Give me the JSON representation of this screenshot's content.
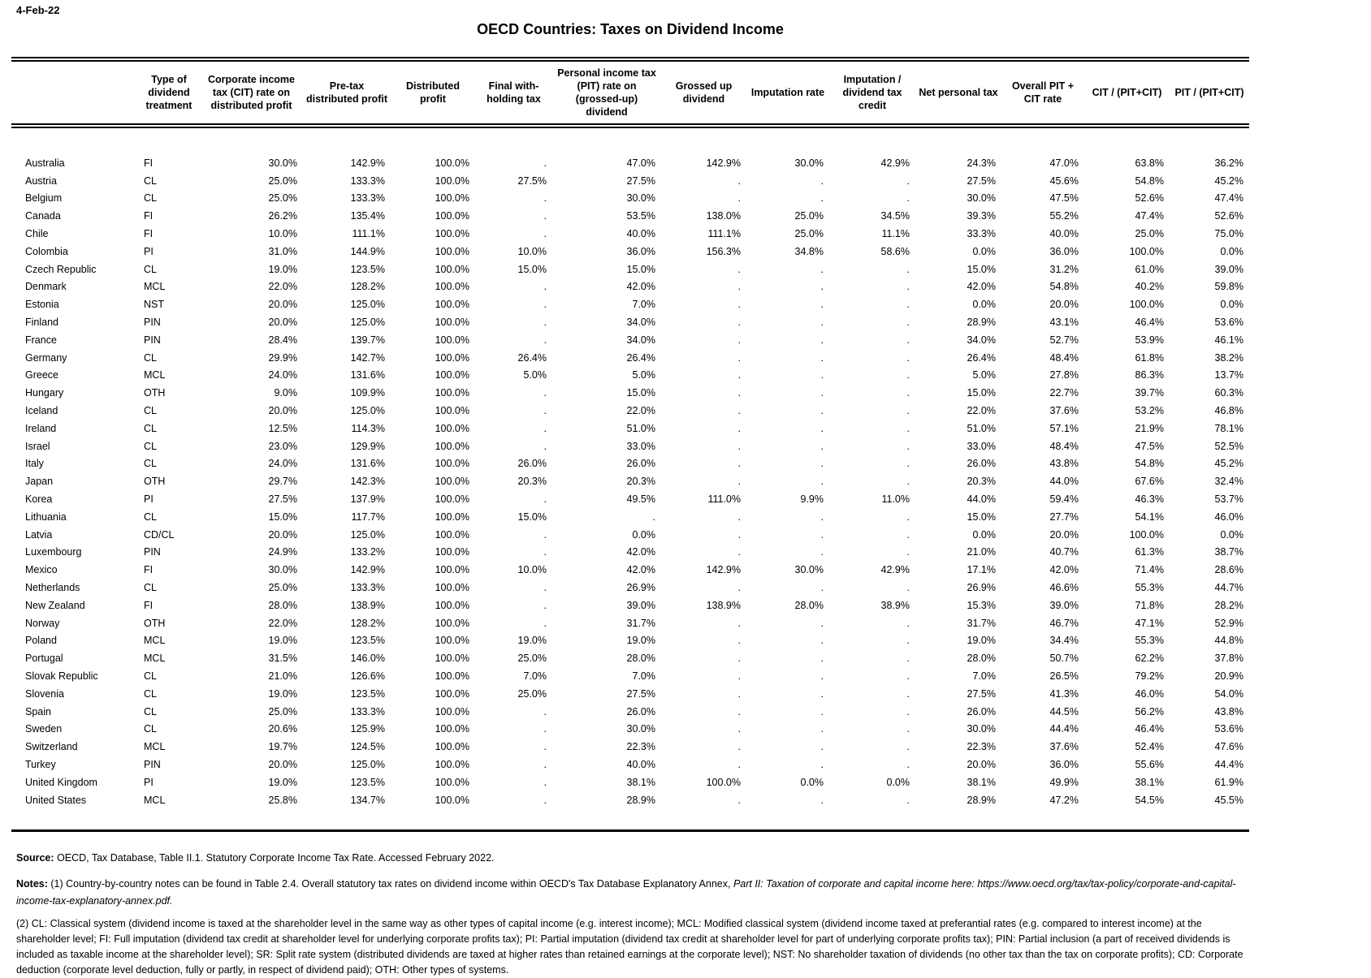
{
  "date_label": "4-Feb-22",
  "title": "OECD Countries: Taxes on Dividend Income",
  "table": {
    "columns": [
      "",
      "Type of dividend treatment",
      "Corporate income tax (CIT) rate on distributed profit",
      "Pre-tax distributed profit",
      "Distributed profit",
      "Final with-holding tax",
      "Personal income tax (PIT) rate on (grossed-up) dividend",
      "Grossed up dividend",
      "Imputation rate",
      "Imputation / dividend tax credit",
      "Net personal tax",
      "Overall PIT + CIT rate",
      "CIT / (PIT+CIT)",
      "PIT / (PIT+CIT)"
    ],
    "rows": [
      [
        "Australia",
        "FI",
        "30.0%",
        "142.9%",
        "100.0%",
        ".",
        "47.0%",
        "142.9%",
        "30.0%",
        "42.9%",
        "24.3%",
        "47.0%",
        "63.8%",
        "36.2%"
      ],
      [
        "Austria",
        "CL",
        "25.0%",
        "133.3%",
        "100.0%",
        "27.5%",
        "27.5%",
        ".",
        ".",
        ".",
        "27.5%",
        "45.6%",
        "54.8%",
        "45.2%"
      ],
      [
        "Belgium",
        "CL",
        "25.0%",
        "133.3%",
        "100.0%",
        ".",
        "30.0%",
        ".",
        ".",
        ".",
        "30.0%",
        "47.5%",
        "52.6%",
        "47.4%"
      ],
      [
        "Canada",
        "FI",
        "26.2%",
        "135.4%",
        "100.0%",
        ".",
        "53.5%",
        "138.0%",
        "25.0%",
        "34.5%",
        "39.3%",
        "55.2%",
        "47.4%",
        "52.6%"
      ],
      [
        "Chile",
        "FI",
        "10.0%",
        "111.1%",
        "100.0%",
        ".",
        "40.0%",
        "111.1%",
        "25.0%",
        "11.1%",
        "33.3%",
        "40.0%",
        "25.0%",
        "75.0%"
      ],
      [
        "Colombia",
        "PI",
        "31.0%",
        "144.9%",
        "100.0%",
        "10.0%",
        "36.0%",
        "156.3%",
        "34.8%",
        "58.6%",
        "0.0%",
        "36.0%",
        "100.0%",
        "0.0%"
      ],
      [
        "Czech Republic",
        "CL",
        "19.0%",
        "123.5%",
        "100.0%",
        "15.0%",
        "15.0%",
        ".",
        ".",
        ".",
        "15.0%",
        "31.2%",
        "61.0%",
        "39.0%"
      ],
      [
        "Denmark",
        "MCL",
        "22.0%",
        "128.2%",
        "100.0%",
        ".",
        "42.0%",
        ".",
        ".",
        ".",
        "42.0%",
        "54.8%",
        "40.2%",
        "59.8%"
      ],
      [
        "Estonia",
        "NST",
        "20.0%",
        "125.0%",
        "100.0%",
        ".",
        "7.0%",
        ".",
        ".",
        ".",
        "0.0%",
        "20.0%",
        "100.0%",
        "0.0%"
      ],
      [
        "Finland",
        "PIN",
        "20.0%",
        "125.0%",
        "100.0%",
        ".",
        "34.0%",
        ".",
        ".",
        ".",
        "28.9%",
        "43.1%",
        "46.4%",
        "53.6%"
      ],
      [
        "France",
        "PIN",
        "28.4%",
        "139.7%",
        "100.0%",
        ".",
        "34.0%",
        ".",
        ".",
        ".",
        "34.0%",
        "52.7%",
        "53.9%",
        "46.1%"
      ],
      [
        "Germany",
        "CL",
        "29.9%",
        "142.7%",
        "100.0%",
        "26.4%",
        "26.4%",
        ".",
        ".",
        ".",
        "26.4%",
        "48.4%",
        "61.8%",
        "38.2%"
      ],
      [
        "Greece",
        "MCL",
        "24.0%",
        "131.6%",
        "100.0%",
        "5.0%",
        "5.0%",
        ".",
        ".",
        ".",
        "5.0%",
        "27.8%",
        "86.3%",
        "13.7%"
      ],
      [
        "Hungary",
        "OTH",
        "9.0%",
        "109.9%",
        "100.0%",
        ".",
        "15.0%",
        ".",
        ".",
        ".",
        "15.0%",
        "22.7%",
        "39.7%",
        "60.3%"
      ],
      [
        "Iceland",
        "CL",
        "20.0%",
        "125.0%",
        "100.0%",
        ".",
        "22.0%",
        ".",
        ".",
        ".",
        "22.0%",
        "37.6%",
        "53.2%",
        "46.8%"
      ],
      [
        "Ireland",
        "CL",
        "12.5%",
        "114.3%",
        "100.0%",
        ".",
        "51.0%",
        ".",
        ".",
        ".",
        "51.0%",
        "57.1%",
        "21.9%",
        "78.1%"
      ],
      [
        "Israel",
        "CL",
        "23.0%",
        "129.9%",
        "100.0%",
        ".",
        "33.0%",
        ".",
        ".",
        ".",
        "33.0%",
        "48.4%",
        "47.5%",
        "52.5%"
      ],
      [
        "Italy",
        "CL",
        "24.0%",
        "131.6%",
        "100.0%",
        "26.0%",
        "26.0%",
        ".",
        ".",
        ".",
        "26.0%",
        "43.8%",
        "54.8%",
        "45.2%"
      ],
      [
        "Japan",
        "OTH",
        "29.7%",
        "142.3%",
        "100.0%",
        "20.3%",
        "20.3%",
        ".",
        ".",
        ".",
        "20.3%",
        "44.0%",
        "67.6%",
        "32.4%"
      ],
      [
        "Korea",
        "PI",
        "27.5%",
        "137.9%",
        "100.0%",
        ".",
        "49.5%",
        "111.0%",
        "9.9%",
        "11.0%",
        "44.0%",
        "59.4%",
        "46.3%",
        "53.7%"
      ],
      [
        "Lithuania",
        "CL",
        "15.0%",
        "117.7%",
        "100.0%",
        "15.0%",
        ".",
        ".",
        ".",
        ".",
        "15.0%",
        "27.7%",
        "54.1%",
        "46.0%"
      ],
      [
        "Latvia",
        "CD/CL",
        "20.0%",
        "125.0%",
        "100.0%",
        ".",
        "0.0%",
        ".",
        ".",
        ".",
        "0.0%",
        "20.0%",
        "100.0%",
        "0.0%"
      ],
      [
        "Luxembourg",
        "PIN",
        "24.9%",
        "133.2%",
        "100.0%",
        ".",
        "42.0%",
        ".",
        ".",
        ".",
        "21.0%",
        "40.7%",
        "61.3%",
        "38.7%"
      ],
      [
        "Mexico",
        "FI",
        "30.0%",
        "142.9%",
        "100.0%",
        "10.0%",
        "42.0%",
        "142.9%",
        "30.0%",
        "42.9%",
        "17.1%",
        "42.0%",
        "71.4%",
        "28.6%"
      ],
      [
        "Netherlands",
        "CL",
        "25.0%",
        "133.3%",
        "100.0%",
        ".",
        "26.9%",
        ".",
        ".",
        ".",
        "26.9%",
        "46.6%",
        "55.3%",
        "44.7%"
      ],
      [
        "New Zealand",
        "FI",
        "28.0%",
        "138.9%",
        "100.0%",
        ".",
        "39.0%",
        "138.9%",
        "28.0%",
        "38.9%",
        "15.3%",
        "39.0%",
        "71.8%",
        "28.2%"
      ],
      [
        "Norway",
        "OTH",
        "22.0%",
        "128.2%",
        "100.0%",
        ".",
        "31.7%",
        ".",
        ".",
        ".",
        "31.7%",
        "46.7%",
        "47.1%",
        "52.9%"
      ],
      [
        "Poland",
        "MCL",
        "19.0%",
        "123.5%",
        "100.0%",
        "19.0%",
        "19.0%",
        ".",
        ".",
        ".",
        "19.0%",
        "34.4%",
        "55.3%",
        "44.8%"
      ],
      [
        "Portugal",
        "MCL",
        "31.5%",
        "146.0%",
        "100.0%",
        "25.0%",
        "28.0%",
        ".",
        ".",
        ".",
        "28.0%",
        "50.7%",
        "62.2%",
        "37.8%"
      ],
      [
        "Slovak Republic",
        "CL",
        "21.0%",
        "126.6%",
        "100.0%",
        "7.0%",
        "7.0%",
        ".",
        ".",
        ".",
        "7.0%",
        "26.5%",
        "79.2%",
        "20.9%"
      ],
      [
        "Slovenia",
        "CL",
        "19.0%",
        "123.5%",
        "100.0%",
        "25.0%",
        "27.5%",
        ".",
        ".",
        ".",
        "27.5%",
        "41.3%",
        "46.0%",
        "54.0%"
      ],
      [
        "Spain",
        "CL",
        "25.0%",
        "133.3%",
        "100.0%",
        ".",
        "26.0%",
        ".",
        ".",
        ".",
        "26.0%",
        "44.5%",
        "56.2%",
        "43.8%"
      ],
      [
        "Sweden",
        "CL",
        "20.6%",
        "125.9%",
        "100.0%",
        ".",
        "30.0%",
        ".",
        ".",
        ".",
        "30.0%",
        "44.4%",
        "46.4%",
        "53.6%"
      ],
      [
        "Switzerland",
        "MCL",
        "19.7%",
        "124.5%",
        "100.0%",
        ".",
        "22.3%",
        ".",
        ".",
        ".",
        "22.3%",
        "37.6%",
        "52.4%",
        "47.6%"
      ],
      [
        "Turkey",
        "PIN",
        "20.0%",
        "125.0%",
        "100.0%",
        ".",
        "40.0%",
        ".",
        ".",
        ".",
        "20.0%",
        "36.0%",
        "55.6%",
        "44.4%"
      ],
      [
        "United Kingdom",
        "PI",
        "19.0%",
        "123.5%",
        "100.0%",
        ".",
        "38.1%",
        "100.0%",
        "0.0%",
        "0.0%",
        "38.1%",
        "49.9%",
        "38.1%",
        "61.9%"
      ],
      [
        "United States",
        "MCL",
        "25.8%",
        "134.7%",
        "100.0%",
        ".",
        "28.9%",
        ".",
        ".",
        ".",
        "28.9%",
        "47.2%",
        "54.5%",
        "45.5%"
      ]
    ]
  },
  "footer": {
    "source_label": "Source:",
    "source_text": " OECD, Tax Database, Table II.1. Statutory Corporate Income Tax Rate. Accessed February 2022.",
    "notes_label": "Notes:",
    "notes1_regular": " (1) Country-by-country notes can be found in Table 2.4. Overall statutory tax rates on dividend income within OECD's Tax Database Explanatory Annex, ",
    "notes1_italic": "Part II: Taxation of corporate and capital income here: https://www.oecd.org/tax/tax-policy/corporate-and-capital-income-tax-explanatory-annex.pdf.",
    "notes2": "(2) CL: Classical system (dividend income is taxed at the shareholder level in the same way as other types of capital income (e.g. interest income); MCL: Modified classical system (dividend income taxed at preferantial rates (e.g. compared to interest income) at the shareholder level; FI: Full imputation (dividend tax credit at shareholder level for underlying corporate profits tax); PI: Partial imputation (dividend tax credit at shareholder level for part of underlying corporate profits tax); PIN: Partial inclusion (a part of received dividends is included as taxable income at the shareholder level); SR: Split rate system (distributed dividends are taxed at higher rates than retained earnings at the corporate level); NST: No shareholder taxation of dividends (no other tax than the tax on corporate profits); CD: Corporate deduction (corporate level deduction, fully or partly, in respect of dividend paid); OTH: Other types of systems."
  }
}
